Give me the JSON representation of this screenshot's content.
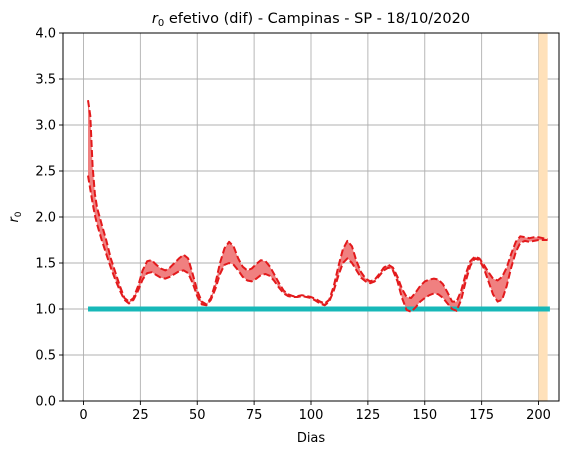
{
  "chart_data": {
    "type": "line",
    "title_prefix": "r",
    "title_subscript": "0",
    "title_suffix": " efetivo (dif) - Campinas - SP - 18/10/2020",
    "xlabel": "Dias",
    "ylabel_base": "r",
    "ylabel_subscript": "0",
    "xlim": [
      -9,
      209
    ],
    "ylim": [
      0,
      4
    ],
    "xticks": [
      0,
      25,
      50,
      75,
      100,
      125,
      150,
      175,
      200
    ],
    "yticks": [
      0.0,
      0.5,
      1.0,
      1.5,
      2.0,
      2.5,
      3.0,
      3.5,
      4.0
    ],
    "ytick_labels": [
      "0.0",
      "0.5",
      "1.0",
      "1.5",
      "2.0",
      "2.5",
      "3.0",
      "3.5",
      "4.0"
    ],
    "grid": true,
    "reference_line": {
      "y": 1.0,
      "x_start": 2,
      "x_end": 205,
      "color": "#17b8b8"
    },
    "highlight_span": {
      "x_start": 200,
      "x_end": 204,
      "color": "#ffe1ba"
    },
    "band_color": "#f08080",
    "line_color": "#e31a1c",
    "series": [
      {
        "role": "upper",
        "x": [
          2,
          3,
          4,
          5,
          6,
          8,
          10,
          12,
          14,
          16,
          18,
          20,
          22,
          24,
          26,
          28,
          30,
          32,
          34,
          36,
          38,
          40,
          42,
          44,
          46,
          48,
          50,
          52,
          54,
          56,
          58,
          60,
          62,
          64,
          66,
          68,
          70,
          72,
          74,
          76,
          78,
          80,
          82,
          84,
          86,
          88,
          90,
          92,
          94,
          96,
          98,
          100,
          102,
          104,
          106,
          108,
          110,
          112,
          114,
          116,
          118,
          120,
          122,
          124,
          126,
          128,
          130,
          132,
          134,
          136,
          138,
          140,
          142,
          144,
          146,
          148,
          150,
          152,
          154,
          156,
          158,
          160,
          162,
          164,
          166,
          168,
          170,
          172,
          174,
          176,
          178,
          180,
          182,
          184,
          186,
          188,
          190,
          192,
          194,
          196,
          198,
          200,
          202,
          204
        ],
        "y": [
          3.27,
          3.1,
          2.55,
          2.25,
          2.1,
          1.92,
          1.75,
          1.55,
          1.4,
          1.25,
          1.12,
          1.08,
          1.12,
          1.25,
          1.42,
          1.52,
          1.53,
          1.48,
          1.44,
          1.42,
          1.45,
          1.5,
          1.55,
          1.59,
          1.55,
          1.38,
          1.2,
          1.08,
          1.05,
          1.12,
          1.28,
          1.5,
          1.66,
          1.73,
          1.68,
          1.55,
          1.46,
          1.42,
          1.44,
          1.49,
          1.53,
          1.52,
          1.46,
          1.37,
          1.28,
          1.2,
          1.16,
          1.14,
          1.14,
          1.15,
          1.14,
          1.13,
          1.11,
          1.08,
          1.06,
          1.1,
          1.25,
          1.46,
          1.65,
          1.74,
          1.68,
          1.52,
          1.4,
          1.33,
          1.3,
          1.32,
          1.38,
          1.45,
          1.48,
          1.45,
          1.35,
          1.22,
          1.13,
          1.12,
          1.18,
          1.25,
          1.3,
          1.32,
          1.33,
          1.32,
          1.27,
          1.18,
          1.08,
          1.08,
          1.2,
          1.38,
          1.52,
          1.57,
          1.55,
          1.48,
          1.4,
          1.33,
          1.31,
          1.35,
          1.45,
          1.6,
          1.73,
          1.79,
          1.78,
          1.77,
          1.78,
          1.78,
          1.77,
          1.76
        ]
      },
      {
        "role": "lower",
        "x": [
          2,
          3,
          4,
          5,
          6,
          8,
          10,
          12,
          14,
          16,
          18,
          20,
          22,
          24,
          26,
          28,
          30,
          32,
          34,
          36,
          38,
          40,
          42,
          44,
          46,
          48,
          50,
          52,
          54,
          56,
          58,
          60,
          62,
          64,
          66,
          68,
          70,
          72,
          74,
          76,
          78,
          80,
          82,
          84,
          86,
          88,
          90,
          92,
          94,
          96,
          98,
          100,
          102,
          104,
          106,
          108,
          110,
          112,
          114,
          116,
          118,
          120,
          122,
          124,
          126,
          128,
          130,
          132,
          134,
          136,
          138,
          140,
          142,
          144,
          146,
          148,
          150,
          152,
          154,
          156,
          158,
          160,
          162,
          164,
          166,
          168,
          170,
          172,
          174,
          176,
          178,
          180,
          182,
          184,
          186,
          188,
          190,
          192,
          194,
          196,
          198,
          200,
          202,
          204
        ],
        "y": [
          2.45,
          2.3,
          2.15,
          2.02,
          1.92,
          1.75,
          1.6,
          1.45,
          1.32,
          1.2,
          1.1,
          1.06,
          1.1,
          1.2,
          1.32,
          1.39,
          1.4,
          1.37,
          1.34,
          1.33,
          1.35,
          1.38,
          1.41,
          1.42,
          1.39,
          1.28,
          1.14,
          1.05,
          1.04,
          1.1,
          1.22,
          1.38,
          1.48,
          1.5,
          1.48,
          1.42,
          1.35,
          1.31,
          1.3,
          1.33,
          1.37,
          1.38,
          1.36,
          1.3,
          1.23,
          1.17,
          1.14,
          1.13,
          1.13,
          1.14,
          1.13,
          1.12,
          1.09,
          1.06,
          1.04,
          1.08,
          1.2,
          1.36,
          1.5,
          1.55,
          1.5,
          1.42,
          1.34,
          1.3,
          1.28,
          1.3,
          1.36,
          1.42,
          1.45,
          1.42,
          1.3,
          1.12,
          0.99,
          0.97,
          1.02,
          1.08,
          1.12,
          1.15,
          1.17,
          1.16,
          1.12,
          1.06,
          1.0,
          0.98,
          1.1,
          1.3,
          1.47,
          1.55,
          1.53,
          1.44,
          1.3,
          1.16,
          1.08,
          1.1,
          1.25,
          1.45,
          1.62,
          1.72,
          1.74,
          1.73,
          1.74,
          1.75,
          1.75,
          1.75
        ]
      }
    ]
  }
}
